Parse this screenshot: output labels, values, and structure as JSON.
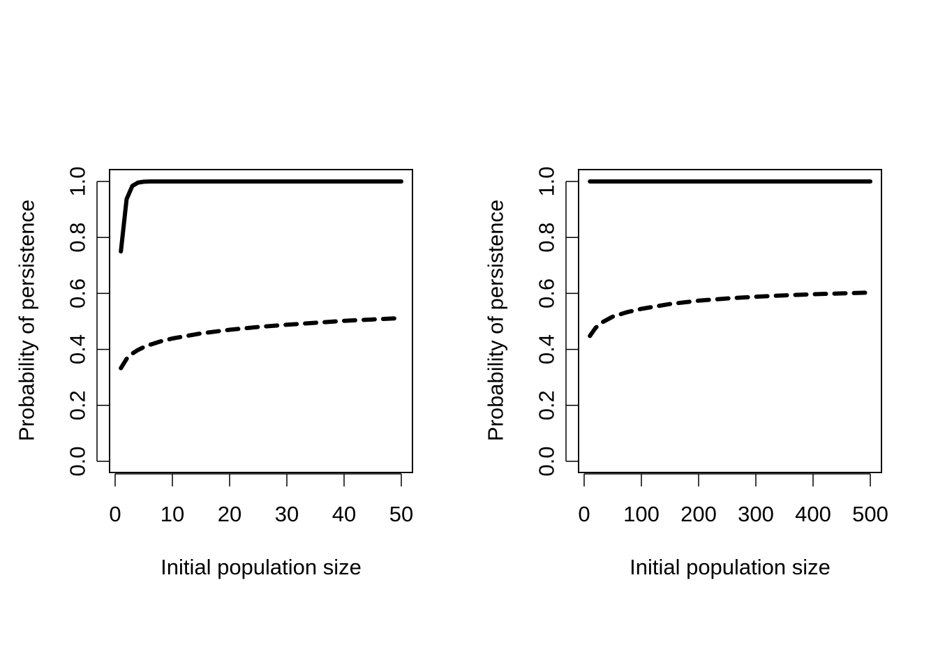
{
  "chart_data": [
    {
      "type": "line",
      "xlabel": "Initial population size",
      "ylabel": "Probability of persistence",
      "xlim": [
        0,
        50
      ],
      "ylim": [
        0,
        1
      ],
      "xticks": [
        "0",
        "10",
        "20",
        "30",
        "40",
        "50"
      ],
      "yticks": [
        "0.0",
        "0.2",
        "0.4",
        "0.6",
        "0.8",
        "1.0"
      ],
      "grid": false,
      "series": [
        {
          "style": "solid",
          "color": "#000000",
          "x": [
            1,
            2,
            3,
            4,
            5,
            6,
            8,
            10,
            15,
            20,
            30,
            40,
            50
          ],
          "y": [
            0.75,
            0.937,
            0.984,
            0.996,
            0.999,
            1.0,
            1.0,
            1.0,
            1.0,
            1.0,
            1.0,
            1.0,
            1.0
          ]
        },
        {
          "style": "dashed",
          "color": "#000000",
          "x": [
            1,
            2,
            3,
            4,
            5,
            6,
            8,
            10,
            15,
            20,
            25,
            30,
            35,
            40,
            45,
            50
          ],
          "y": [
            0.333,
            0.366,
            0.385,
            0.398,
            0.408,
            0.416,
            0.429,
            0.439,
            0.457,
            0.47,
            0.48,
            0.488,
            0.495,
            0.502,
            0.507,
            0.512
          ]
        }
      ]
    },
    {
      "type": "line",
      "xlabel": "Initial population size",
      "ylabel": "Probability of persistence",
      "xlim": [
        0,
        500
      ],
      "ylim": [
        0,
        1
      ],
      "xticks": [
        "0",
        "100",
        "200",
        "300",
        "400",
        "500"
      ],
      "yticks": [
        "0.0",
        "0.2",
        "0.4",
        "0.6",
        "0.8",
        "1.0"
      ],
      "grid": false,
      "series": [
        {
          "style": "solid",
          "color": "#000000",
          "x": [
            10,
            50,
            100,
            200,
            300,
            400,
            500
          ],
          "y": [
            1.0,
            1.0,
            1.0,
            1.0,
            1.0,
            1.0,
            1.0
          ]
        },
        {
          "style": "dashed",
          "color": "#000000",
          "x": [
            10,
            20,
            30,
            50,
            75,
            100,
            150,
            200,
            250,
            300,
            350,
            400,
            450,
            500
          ],
          "y": [
            0.448,
            0.477,
            0.495,
            0.517,
            0.533,
            0.545,
            0.562,
            0.574,
            0.582,
            0.588,
            0.593,
            0.597,
            0.6,
            0.603
          ]
        }
      ]
    }
  ]
}
